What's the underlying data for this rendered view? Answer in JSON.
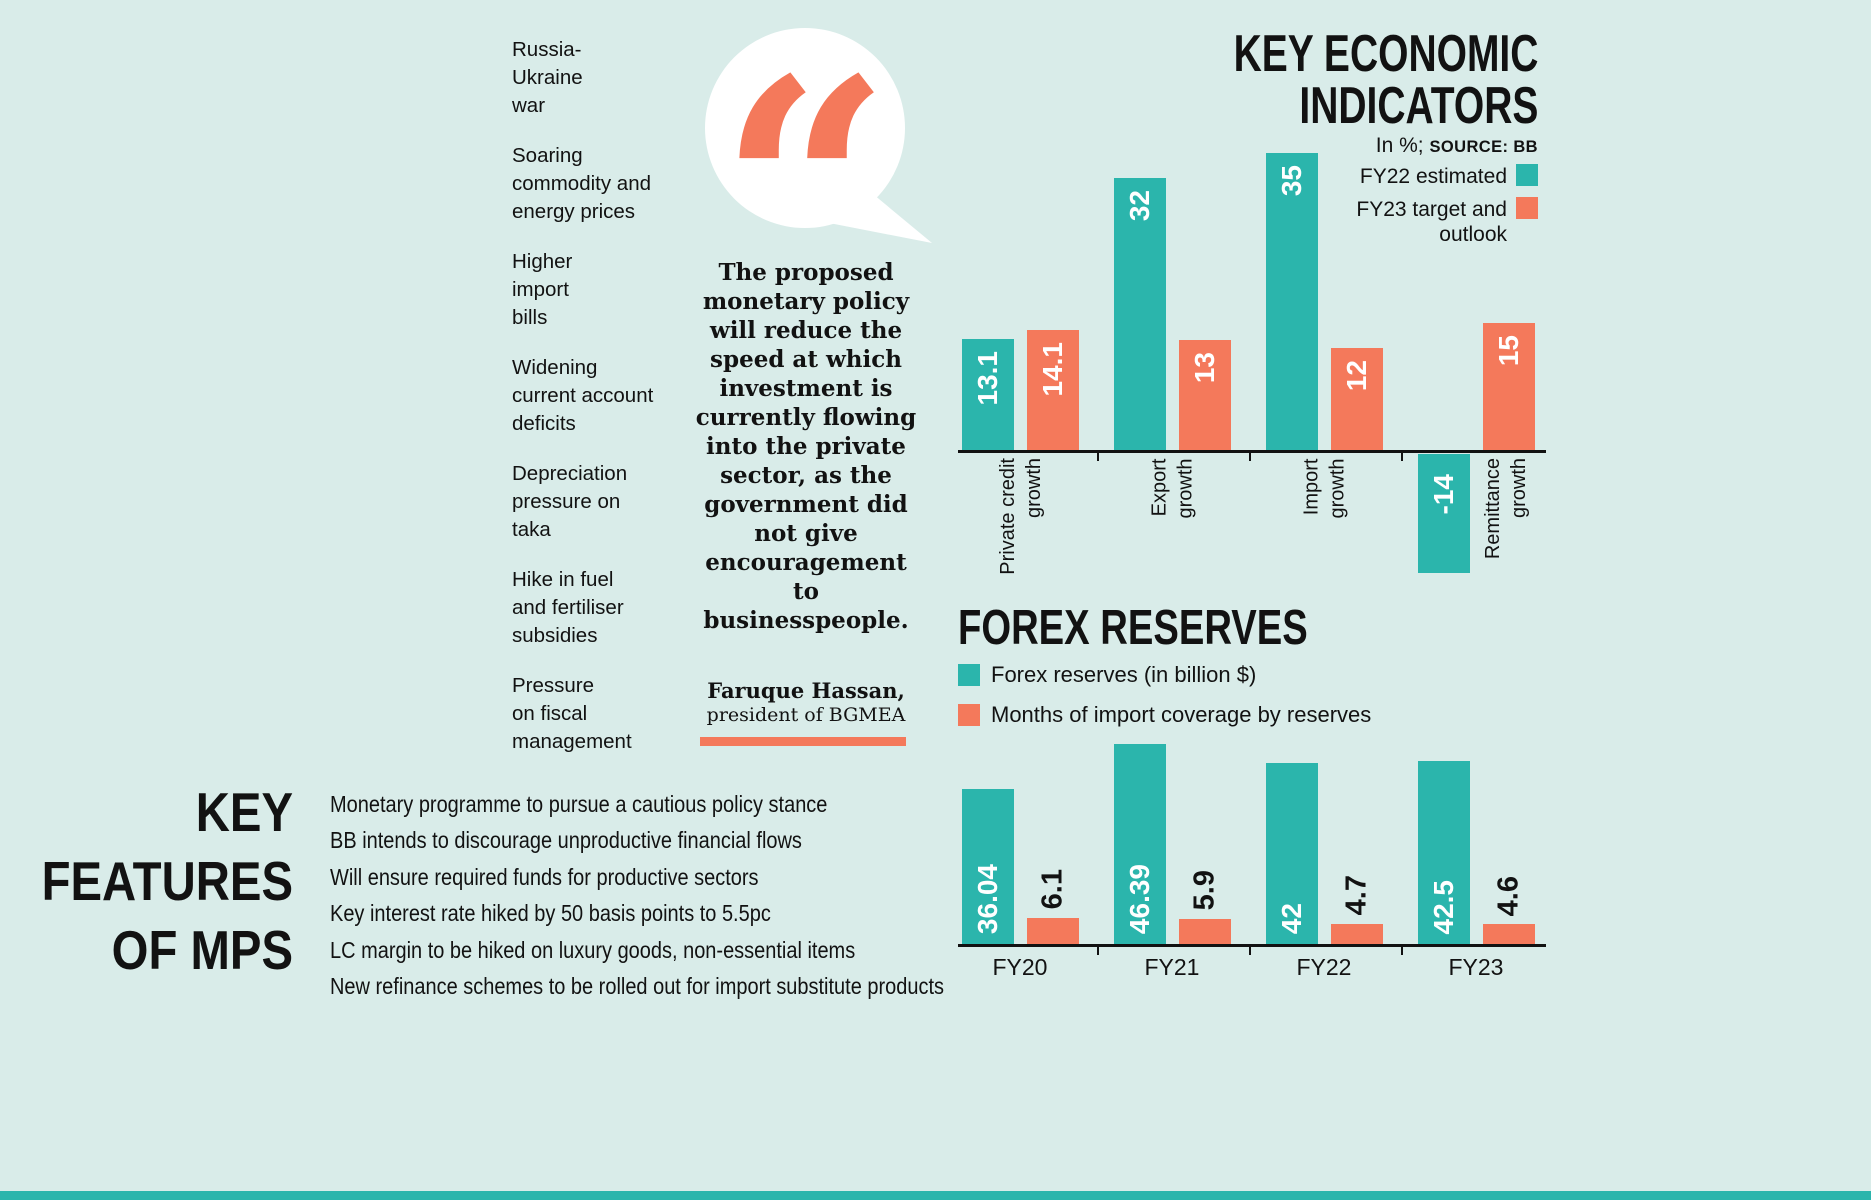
{
  "palette": {
    "background": "#d9ece9",
    "teal": "#2bb5ac",
    "orange": "#f4795b",
    "ink": "#121212"
  },
  "challenges": {
    "items": [
      "Russia-\nUkraine\nwar",
      "Soaring\ncommodity and\nenergy prices",
      "Higher\nimport\nbills",
      "Widening\ncurrent account\ndeficits",
      "Depreciation\npressure on\ntaka",
      "Hike in fuel\nand fertiliser\nsubsidies",
      "Pressure\non fiscal\nmanagement"
    ]
  },
  "quote": {
    "glyph": "“",
    "text": "The proposed monetary policy will reduce the speed at which investment is currently flowing into the private sector, as the government did not give encouragement to businesspeople.",
    "author": "Faruque Hassan,",
    "author_title": "president of BGMEA"
  },
  "indicators": {
    "title": "KEY ECONOMIC\nINDICATORS",
    "unit": "In %;",
    "source": "SOURCE: BB"
  },
  "forex": {
    "title": "FOREX RESERVES"
  },
  "key_features": {
    "title": "KEY\nFEATURES\nOF MPS",
    "items": [
      "Monetary programme to pursue a cautious policy stance",
      "BB intends to discourage unproductive financial flows",
      "Will ensure required funds for productive sectors",
      "Key interest rate hiked by 50 basis points to 5.5pc",
      "LC margin to be hiked on luxury goods, non-essential items",
      "New refinance schemes to be rolled out for import substitute products"
    ]
  },
  "chart_data": [
    {
      "type": "bar",
      "title": "KEY ECONOMIC INDICATORS",
      "subtitle": "In %; SOURCE: BB",
      "categories": [
        "Private credit growth",
        "Export growth",
        "Import growth",
        "Remittance growth"
      ],
      "series": [
        {
          "name": "FY22 estimated",
          "color": "#2bb5ac",
          "values": [
            13.1,
            32,
            35,
            -14
          ]
        },
        {
          "name": "FY23 target and outlook",
          "color": "#f4795b",
          "values": [
            14.1,
            13,
            12,
            15
          ]
        }
      ],
      "ylabel": "%",
      "ylim": [
        -14,
        35
      ],
      "grid": false,
      "legend_position": "top-right"
    },
    {
      "type": "bar",
      "title": "FOREX RESERVES",
      "categories": [
        "FY20",
        "FY21",
        "FY22",
        "FY23"
      ],
      "series": [
        {
          "name": "Forex reserves (in billion $)",
          "color": "#2bb5ac",
          "values": [
            36.04,
            46.39,
            42,
            42.5
          ]
        },
        {
          "name": "Months of import coverage by reserves",
          "color": "#f4795b",
          "values": [
            6.1,
            5.9,
            4.7,
            4.6
          ]
        }
      ],
      "ylim": [
        0,
        46.39
      ],
      "grid": false,
      "legend_position": "top-left"
    }
  ]
}
